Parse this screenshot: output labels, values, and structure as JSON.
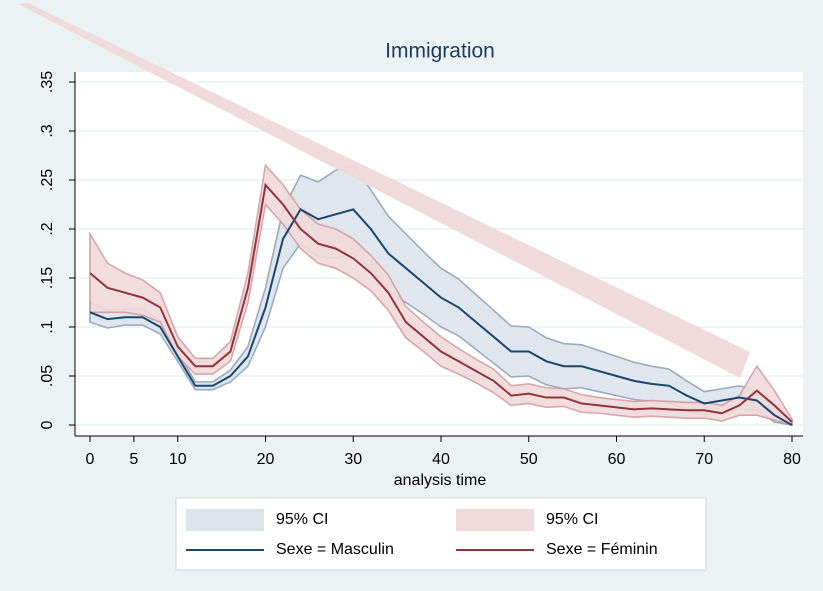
{
  "chart_data": {
    "type": "line",
    "title": "Immigration",
    "x_label": "analysis time",
    "x": [
      0,
      2,
      4,
      6,
      8,
      10,
      12,
      14,
      16,
      18,
      20,
      22,
      24,
      26,
      28,
      30,
      32,
      34,
      36,
      38,
      40,
      42,
      44,
      46,
      48,
      50,
      52,
      54,
      56,
      58,
      60,
      62,
      64,
      66,
      68,
      70,
      72,
      74,
      76,
      78,
      80
    ],
    "series": [
      {
        "name": "95% CI",
        "kind": "band",
        "color": "#dde4ec",
        "edge": "#8ea3b7",
        "lower": [
          0.105,
          0.099,
          0.102,
          0.102,
          0.093,
          0.065,
          0.036,
          0.036,
          0.044,
          0.06,
          0.1,
          0.16,
          0.185,
          0.172,
          0.17,
          0.175,
          0.16,
          0.137,
          0.125,
          0.113,
          0.1,
          0.091,
          0.077,
          0.063,
          0.049,
          0.05,
          0.041,
          0.037,
          0.038,
          0.034,
          0.03,
          0.026,
          0.024,
          0.023,
          0.015,
          0.01,
          0.013,
          0.016,
          0.015,
          0.003,
          0
        ],
        "upper": [
          0.125,
          0.117,
          0.118,
          0.118,
          0.107,
          0.075,
          0.044,
          0.044,
          0.056,
          0.08,
          0.14,
          0.22,
          0.255,
          0.248,
          0.26,
          0.265,
          0.24,
          0.213,
          0.195,
          0.177,
          0.16,
          0.149,
          0.133,
          0.117,
          0.101,
          0.1,
          0.089,
          0.083,
          0.082,
          0.076,
          0.07,
          0.064,
          0.06,
          0.057,
          0.045,
          0.034,
          0.037,
          0.04,
          0.035,
          0.017,
          0.005
        ]
      },
      {
        "name": "95% CI",
        "kind": "band",
        "color": "#f1dadb",
        "edge": "#d39ca1",
        "lower": [
          0.115,
          0.115,
          0.115,
          0.112,
          0.105,
          0.07,
          0.052,
          0.052,
          0.065,
          0.125,
          0.225,
          0.205,
          0.18,
          0.165,
          0.16,
          0.15,
          0.137,
          0.117,
          0.089,
          0.075,
          0.06,
          0.052,
          0.043,
          0.033,
          0.02,
          0.022,
          0.018,
          0.019,
          0.013,
          0.012,
          0.01,
          0.008,
          0.009,
          0.008,
          0.007,
          0.007,
          0.004,
          0.01,
          0.01,
          0.005,
          0
        ],
        "upper": [
          0.195,
          0.165,
          0.155,
          0.148,
          0.135,
          0.09,
          0.068,
          0.068,
          0.085,
          0.155,
          0.265,
          0.245,
          0.22,
          0.205,
          0.2,
          0.19,
          0.173,
          0.153,
          0.121,
          0.105,
          0.09,
          0.078,
          0.067,
          0.057,
          0.04,
          0.042,
          0.038,
          0.037,
          0.031,
          0.028,
          0.026,
          0.024,
          0.025,
          0.024,
          0.023,
          0.023,
          0.02,
          0.03,
          0.06,
          0.035,
          0.006
        ]
      },
      {
        "name": "Sexe = Masculin",
        "kind": "line",
        "color": "#1a476f",
        "values": [
          0.115,
          0.108,
          0.11,
          0.11,
          0.1,
          0.07,
          0.04,
          0.04,
          0.05,
          0.07,
          0.12,
          0.19,
          0.22,
          0.21,
          0.215,
          0.22,
          0.2,
          0.175,
          0.16,
          0.145,
          0.13,
          0.12,
          0.105,
          0.09,
          0.075,
          0.075,
          0.065,
          0.06,
          0.06,
          0.055,
          0.05,
          0.045,
          0.042,
          0.04,
          0.03,
          0.022,
          0.025,
          0.028,
          0.025,
          0.01,
          0
        ]
      },
      {
        "name": "Sexe = Féminin",
        "kind": "line",
        "color": "#90353b",
        "values": [
          0.155,
          0.14,
          0.135,
          0.13,
          0.12,
          0.08,
          0.06,
          0.06,
          0.075,
          0.14,
          0.245,
          0.225,
          0.2,
          0.185,
          0.18,
          0.17,
          0.155,
          0.135,
          0.105,
          0.09,
          0.075,
          0.065,
          0.055,
          0.045,
          0.03,
          0.032,
          0.028,
          0.028,
          0.022,
          0.02,
          0.018,
          0.016,
          0.017,
          0.016,
          0.015,
          0.015,
          0.012,
          0.02,
          0.035,
          0.02,
          0.003
        ]
      }
    ],
    "xlim": [
      0,
      80
    ],
    "xticks": [
      0,
      5,
      10,
      20,
      30,
      40,
      50,
      60,
      70,
      80
    ],
    "ylim": [
      0,
      0.35
    ],
    "yticks": [
      0,
      {
        "value": 0.05,
        "label": ".05"
      },
      {
        "value": 0.1,
        "label": ".1"
      },
      {
        "value": 0.15,
        "label": ".15"
      },
      {
        "value": 0.2,
        "label": ".2"
      },
      {
        "value": 0.25,
        "label": ".25"
      },
      {
        "value": 0.3,
        "label": ".3"
      },
      {
        "value": 0.35,
        "label": ".35"
      }
    ],
    "grid": true
  }
}
